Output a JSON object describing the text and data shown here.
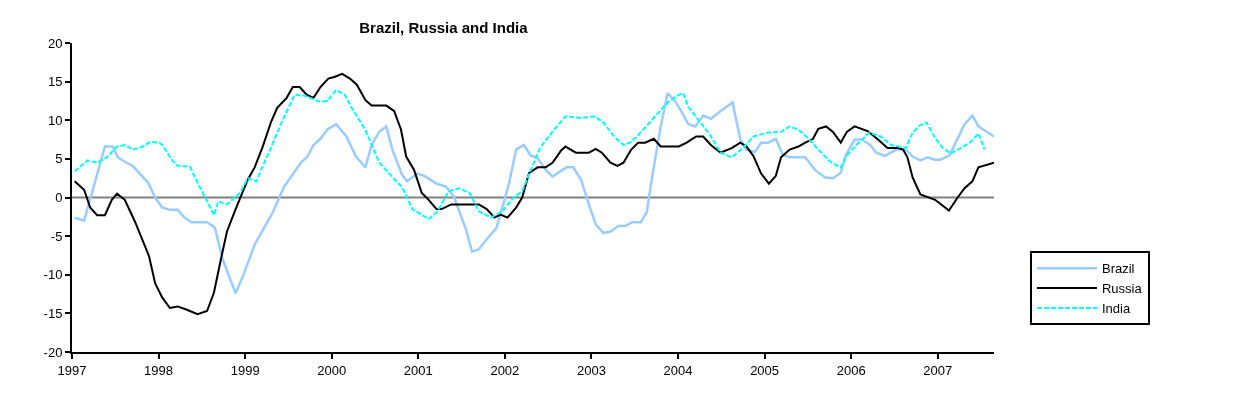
{
  "chart_data": {
    "type": "line",
    "title": "Brazil, Russia and India",
    "xlim": [
      1997,
      2007.65
    ],
    "xticks": [
      1997,
      1998,
      1999,
      2000,
      2001,
      2002,
      2003,
      2004,
      2005,
      2006,
      2007
    ],
    "ylim": [
      -20,
      20
    ],
    "yticks": [
      -20,
      -15,
      -10,
      -5,
      0,
      5,
      10,
      15,
      20
    ],
    "grid": false,
    "legend": "right",
    "marker": "none",
    "ref_lines": [
      {
        "axis": "y",
        "value": 0,
        "color": "#808080"
      }
    ],
    "series": [
      {
        "name": "Brazil",
        "color": "#99ccff",
        "line_style": "solid",
        "x": [
          1997.03,
          1997.14,
          1997.38,
          1997.47,
          1997.53,
          1997.63,
          1997.7,
          1997.88,
          1997.96,
          1998.04,
          1998.13,
          1998.22,
          1998.3,
          1998.38,
          1998.56,
          1998.65,
          1998.74,
          1998.89,
          1998.97,
          1999.11,
          1999.22,
          1999.32,
          1999.37,
          1999.45,
          1999.55,
          1999.65,
          1999.72,
          1999.79,
          1999.87,
          1999.95,
          2000.05,
          2000.17,
          2000.28,
          2000.39,
          2000.46,
          2000.55,
          2000.63,
          2000.7,
          2000.81,
          2000.87,
          2000.99,
          2001.07,
          2001.21,
          2001.32,
          2001.41,
          2001.55,
          2001.62,
          2001.7,
          2001.79,
          2001.9,
          2001.97,
          2002.05,
          2002.13,
          2002.22,
          2002.3,
          2002.37,
          2002.47,
          2002.55,
          2002.71,
          2002.79,
          2002.88,
          2002.97,
          2003.05,
          2003.14,
          2003.22,
          2003.31,
          2003.39,
          2003.47,
          2003.57,
          2003.64,
          2003.69,
          2003.8,
          2003.88,
          2003.97,
          2004.04,
          2004.12,
          2004.2,
          2004.29,
          2004.38,
          2004.48,
          2004.63,
          2004.72,
          2004.79,
          2004.89,
          2004.96,
          2005.04,
          2005.13,
          2005.21,
          2005.29,
          2005.47,
          2005.58,
          2005.7,
          2005.79,
          2005.88,
          2005.94,
          2006.04,
          2006.12,
          2006.22,
          2006.29,
          2006.39,
          2006.52,
          2006.63,
          2006.71,
          2006.8,
          2006.88,
          2006.97,
          2007.03,
          2007.14,
          2007.21,
          2007.31,
          2007.4,
          2007.47,
          2007.65
        ],
        "values": [
          -2.6,
          -3.0,
          6.6,
          6.6,
          5.2,
          4.5,
          4.1,
          1.9,
          0,
          -1.3,
          -1.6,
          -1.6,
          -2.6,
          -3.2,
          -3.2,
          -3.9,
          -8.0,
          -12.4,
          -10.3,
          -6.1,
          -3.9,
          -1.9,
          -0.6,
          1.4,
          3.0,
          4.6,
          5.3,
          6.8,
          7.6,
          8.8,
          9.5,
          7.9,
          5.3,
          3.9,
          6.8,
          8.5,
          9.2,
          6.2,
          3.0,
          2.1,
          3.1,
          2.8,
          1.8,
          1.4,
          0.1,
          -4.1,
          -7.0,
          -6.7,
          -5.4,
          -4.0,
          -1.3,
          1.9,
          6.2,
          6.8,
          5.4,
          5.2,
          3.6,
          2.7,
          3.9,
          3.9,
          2.3,
          -0.9,
          -3.5,
          -4.6,
          -4.4,
          -3.7,
          -3.7,
          -3.2,
          -3.2,
          -1.9,
          1.9,
          9.2,
          13.5,
          12.4,
          11.1,
          9.5,
          9.2,
          10.6,
          10.2,
          11.1,
          12.3,
          7.5,
          6.2,
          5.9,
          7.1,
          7.1,
          7.6,
          5.5,
          5.2,
          5.2,
          3.6,
          2.6,
          2.5,
          3.2,
          5.5,
          7.5,
          7.5,
          6.8,
          5.8,
          5.4,
          6.2,
          6.2,
          5.3,
          4.8,
          5.2,
          4.9,
          4.9,
          5.5,
          7.2,
          9.5,
          10.6,
          9.2,
          7.9
        ]
      },
      {
        "name": "Russia",
        "color": "#000000",
        "line_style": "solid",
        "x": [
          1997.03,
          1997.14,
          1997.21,
          1997.29,
          1997.38,
          1997.46,
          1997.52,
          1997.61,
          1997.73,
          1997.81,
          1997.89,
          1997.96,
          1998.04,
          1998.13,
          1998.22,
          1998.32,
          1998.45,
          1998.56,
          1998.64,
          1998.72,
          1998.79,
          1998.88,
          1998.96,
          1999.03,
          1999.11,
          1999.2,
          1999.3,
          1999.37,
          1999.48,
          1999.55,
          1999.63,
          1999.71,
          1999.79,
          1999.87,
          1999.96,
          2000.03,
          2000.12,
          2000.21,
          2000.29,
          2000.39,
          2000.46,
          2000.63,
          2000.72,
          2000.8,
          2000.86,
          2000.95,
          2001.04,
          2001.12,
          2001.21,
          2001.27,
          2001.38,
          2001.7,
          2001.79,
          2001.88,
          2001.95,
          2002.03,
          2002.13,
          2002.2,
          2002.28,
          2002.38,
          2002.47,
          2002.55,
          2002.65,
          2002.7,
          2002.82,
          2002.97,
          2003.05,
          2003.12,
          2003.22,
          2003.3,
          2003.37,
          2003.46,
          2003.54,
          2003.62,
          2003.72,
          2003.8,
          2004.01,
          2004.1,
          2004.21,
          2004.29,
          2004.38,
          2004.49,
          2004.62,
          2004.72,
          2004.79,
          2004.87,
          2004.96,
          2005.05,
          2005.13,
          2005.19,
          2005.29,
          2005.39,
          2005.47,
          2005.56,
          2005.62,
          2005.71,
          2005.79,
          2005.88,
          2005.95,
          2006.04,
          2006.19,
          2006.31,
          2006.42,
          2006.54,
          2006.6,
          2006.65,
          2006.71,
          2006.8,
          2006.97,
          2007.13,
          2007.23,
          2007.31,
          2007.4,
          2007.47,
          2007.65
        ],
        "values": [
          2.1,
          1.0,
          -1.3,
          -2.3,
          -2.3,
          -0.3,
          0.5,
          -0.3,
          -3.2,
          -5.4,
          -7.6,
          -11.1,
          -12.9,
          -14.3,
          -14.1,
          -14.5,
          -15.1,
          -14.7,
          -12.3,
          -8.0,
          -4.4,
          -1.8,
          0.4,
          2.3,
          3.9,
          6.5,
          9.8,
          11.6,
          12.9,
          14.3,
          14.3,
          13.3,
          12.9,
          14.3,
          15.4,
          15.6,
          16.0,
          15.4,
          14.6,
          12.6,
          11.9,
          11.9,
          11.2,
          8.8,
          5.3,
          3.6,
          0.6,
          -0.3,
          -1.5,
          -1.5,
          -0.9,
          -0.9,
          -1.5,
          -2.6,
          -2.2,
          -2.6,
          -1.3,
          0,
          3.2,
          3.9,
          3.9,
          4.5,
          6.1,
          6.6,
          5.8,
          5.8,
          6.3,
          5.8,
          4.5,
          4.1,
          4.5,
          6.2,
          7.1,
          7.1,
          7.6,
          6.6,
          6.6,
          7.1,
          7.9,
          7.9,
          6.8,
          5.8,
          6.4,
          7.1,
          6.6,
          5.4,
          3.1,
          1.8,
          2.8,
          5.2,
          6.2,
          6.6,
          7.1,
          7.6,
          8.9,
          9.2,
          8.5,
          7.1,
          8.5,
          9.2,
          8.6,
          7.5,
          6.4,
          6.4,
          6.2,
          5.2,
          2.6,
          0.4,
          -0.3,
          -1.7,
          0,
          1.2,
          2.1,
          3.9,
          4.5
        ]
      },
      {
        "name": "India",
        "color": "#00ffff",
        "line_style": "dashed",
        "x": [
          1997.03,
          1997.18,
          1997.29,
          1997.4,
          1997.52,
          1997.61,
          1997.7,
          1997.82,
          1997.9,
          1998.01,
          1998.05,
          1998.15,
          1998.22,
          1998.36,
          1998.45,
          1998.56,
          1998.64,
          1998.69,
          1998.79,
          1998.85,
          1998.94,
          1999.03,
          1999.13,
          1999.2,
          1999.3,
          1999.4,
          1999.49,
          1999.57,
          1999.68,
          1999.86,
          1999.95,
          2000.05,
          2000.15,
          2000.24,
          2000.38,
          2000.55,
          2000.76,
          2000.81,
          2000.93,
          2001.12,
          2001.22,
          2001.35,
          2001.47,
          2001.59,
          2001.7,
          2001.84,
          2001.97,
          2002.1,
          2002.2,
          2002.3,
          2002.41,
          2002.54,
          2002.7,
          2002.88,
          2003.03,
          2003.14,
          2003.26,
          2003.37,
          2003.46,
          2003.6,
          2003.75,
          2003.89,
          2004.01,
          2004.06,
          2004.12,
          2004.26,
          2004.38,
          2004.49,
          2004.62,
          2004.75,
          2004.87,
          2005.04,
          2005.19,
          2005.29,
          2005.39,
          2005.5,
          2005.62,
          2005.76,
          2005.88,
          2005.94,
          2006.06,
          2006.21,
          2006.34,
          2006.46,
          2006.63,
          2006.71,
          2006.79,
          2006.87,
          2006.97,
          2007.06,
          2007.15,
          2007.25,
          2007.37,
          2007.47,
          2007.54
        ],
        "values": [
          3.4,
          4.8,
          4.5,
          5.2,
          6.6,
          6.8,
          6.2,
          6.6,
          7.2,
          7.1,
          6.7,
          4.9,
          4.1,
          4.0,
          1.9,
          -0.5,
          -2.3,
          -0.5,
          -0.9,
          -0.3,
          0.6,
          2.5,
          2.1,
          4.0,
          6.5,
          9.2,
          11.4,
          13.3,
          13.2,
          12.4,
          12.5,
          13.9,
          13.3,
          11.4,
          8.9,
          4.5,
          1.9,
          1.4,
          -1.5,
          -2.8,
          -1.8,
          0.8,
          1.2,
          0.6,
          -1.8,
          -2.6,
          -1.8,
          0,
          0.8,
          3.6,
          6.5,
          8.4,
          10.5,
          10.3,
          10.5,
          9.7,
          7.9,
          6.8,
          7.2,
          8.8,
          10.7,
          12.4,
          13.3,
          13.5,
          11.7,
          9.7,
          7.9,
          5.8,
          5.2,
          6.4,
          7.9,
          8.4,
          8.5,
          9.2,
          8.8,
          7.7,
          6.2,
          4.6,
          3.9,
          5.3,
          6.8,
          8.4,
          7.9,
          6.8,
          6.4,
          8.4,
          9.3,
          9.7,
          7.7,
          6.4,
          5.7,
          6.3,
          7.1,
          8.3,
          6.2
        ]
      }
    ]
  }
}
